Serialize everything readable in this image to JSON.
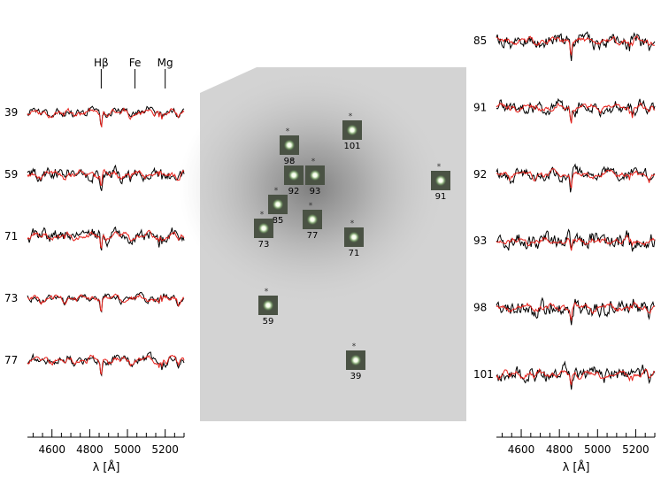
{
  "chart_data": {
    "type": "line",
    "line_markers": [
      "Hβ",
      "Fe",
      "Mg"
    ],
    "line_marker_wavelengths": [
      4861,
      5040,
      5200
    ],
    "x_tick_labels": [
      "4600",
      "4800",
      "5000",
      "5200"
    ],
    "x_ticks": [
      4600,
      4800,
      5000,
      5200
    ],
    "xlim": [
      4470,
      5300
    ],
    "xlabel": "λ [Å]",
    "colors": {
      "observed": "#000000",
      "model": "#e8211b"
    },
    "panels": [
      {
        "side": "left",
        "spectra": [
          {
            "label": "39",
            "noise": 0.6,
            "depth": 1.0
          },
          {
            "label": "59",
            "noise": 1.1,
            "depth": 0.8
          },
          {
            "label": "71",
            "noise": 1.1,
            "depth": 0.8
          },
          {
            "label": "73",
            "noise": 0.5,
            "depth": 0.9
          },
          {
            "label": "77",
            "noise": 0.7,
            "depth": 1.0
          }
        ]
      },
      {
        "side": "right",
        "spectra": [
          {
            "label": "85",
            "noise": 1.2,
            "depth": 0.9
          },
          {
            "label": "91",
            "noise": 1.1,
            "depth": 1.0
          },
          {
            "label": "92",
            "noise": 1.0,
            "depth": 0.9
          },
          {
            "label": "93",
            "noise": 1.4,
            "depth": 0.8
          },
          {
            "label": "98",
            "noise": 1.4,
            "depth": 0.8
          },
          {
            "label": "101",
            "noise": 1.3,
            "depth": 0.9
          }
        ]
      }
    ],
    "image_sources": [
      "101",
      "98",
      "92",
      "93",
      "91",
      "85",
      "73",
      "77",
      "71",
      "59",
      "39"
    ]
  }
}
